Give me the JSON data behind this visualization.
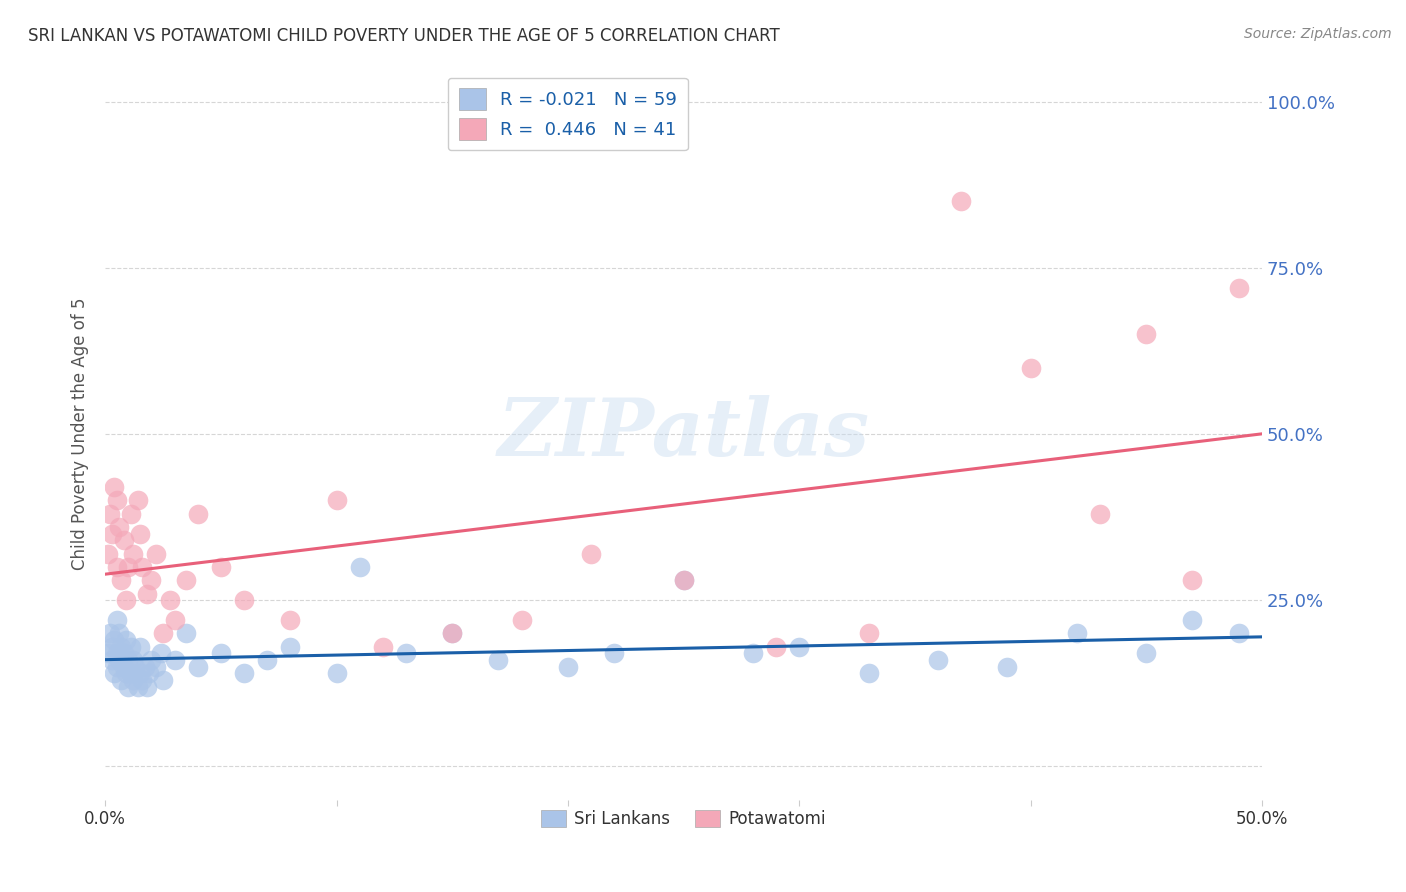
{
  "title": "SRI LANKAN VS POTAWATOMI CHILD POVERTY UNDER THE AGE OF 5 CORRELATION CHART",
  "source": "Source: ZipAtlas.com",
  "ylabel": "Child Poverty Under the Age of 5",
  "xlim": [
    0.0,
    0.5
  ],
  "ylim": [
    -0.05,
    1.05
  ],
  "yticks": [
    0.0,
    0.25,
    0.5,
    0.75,
    1.0
  ],
  "ytick_labels_right": [
    "",
    "25.0%",
    "50.0%",
    "75.0%",
    "100.0%"
  ],
  "xticks": [
    0.0,
    0.1,
    0.2,
    0.3,
    0.4,
    0.5
  ],
  "xtick_labels": [
    "0.0%",
    "",
    "",
    "",
    "",
    "50.0%"
  ],
  "sri_color": "#aac4e8",
  "pot_color": "#f4a8b8",
  "sri_line_color": "#1a5fa8",
  "pot_line_color": "#e8607a",
  "R_sri": -0.021,
  "N_sri": 59,
  "R_pot": 0.446,
  "N_pot": 41,
  "label_sri": "Sri Lankans",
  "label_pot": "Potawatomi",
  "watermark": "ZIPatlas",
  "bg_color": "#ffffff",
  "grid_color": "#cccccc",
  "title_color": "#333333",
  "right_tick_color": "#4472c4",
  "sri_x": [
    0.001,
    0.002,
    0.003,
    0.003,
    0.004,
    0.004,
    0.005,
    0.005,
    0.005,
    0.006,
    0.006,
    0.007,
    0.007,
    0.008,
    0.008,
    0.009,
    0.009,
    0.01,
    0.01,
    0.011,
    0.011,
    0.012,
    0.012,
    0.013,
    0.014,
    0.015,
    0.015,
    0.016,
    0.017,
    0.018,
    0.019,
    0.02,
    0.022,
    0.024,
    0.025,
    0.03,
    0.035,
    0.04,
    0.05,
    0.06,
    0.07,
    0.08,
    0.1,
    0.11,
    0.13,
    0.15,
    0.17,
    0.2,
    0.22,
    0.25,
    0.28,
    0.3,
    0.33,
    0.36,
    0.39,
    0.42,
    0.45,
    0.47,
    0.49
  ],
  "sri_y": [
    0.17,
    0.2,
    0.16,
    0.18,
    0.14,
    0.19,
    0.17,
    0.22,
    0.15,
    0.16,
    0.2,
    0.18,
    0.13,
    0.15,
    0.17,
    0.14,
    0.19,
    0.12,
    0.16,
    0.14,
    0.18,
    0.13,
    0.16,
    0.15,
    0.12,
    0.14,
    0.18,
    0.13,
    0.15,
    0.12,
    0.14,
    0.16,
    0.15,
    0.17,
    0.13,
    0.16,
    0.2,
    0.15,
    0.17,
    0.14,
    0.16,
    0.18,
    0.14,
    0.3,
    0.17,
    0.2,
    0.16,
    0.15,
    0.17,
    0.28,
    0.17,
    0.18,
    0.14,
    0.16,
    0.15,
    0.2,
    0.17,
    0.22,
    0.2
  ],
  "pot_x": [
    0.001,
    0.002,
    0.003,
    0.004,
    0.005,
    0.005,
    0.006,
    0.007,
    0.008,
    0.009,
    0.01,
    0.011,
    0.012,
    0.014,
    0.015,
    0.016,
    0.018,
    0.02,
    0.022,
    0.025,
    0.028,
    0.03,
    0.035,
    0.04,
    0.05,
    0.06,
    0.08,
    0.1,
    0.12,
    0.15,
    0.18,
    0.21,
    0.25,
    0.29,
    0.33,
    0.37,
    0.4,
    0.43,
    0.45,
    0.47,
    0.49
  ],
  "pot_y": [
    0.32,
    0.38,
    0.35,
    0.42,
    0.3,
    0.4,
    0.36,
    0.28,
    0.34,
    0.25,
    0.3,
    0.38,
    0.32,
    0.4,
    0.35,
    0.3,
    0.26,
    0.28,
    0.32,
    0.2,
    0.25,
    0.22,
    0.28,
    0.38,
    0.3,
    0.25,
    0.22,
    0.4,
    0.18,
    0.2,
    0.22,
    0.32,
    0.28,
    0.18,
    0.2,
    0.85,
    0.6,
    0.38,
    0.65,
    0.28,
    0.72
  ]
}
